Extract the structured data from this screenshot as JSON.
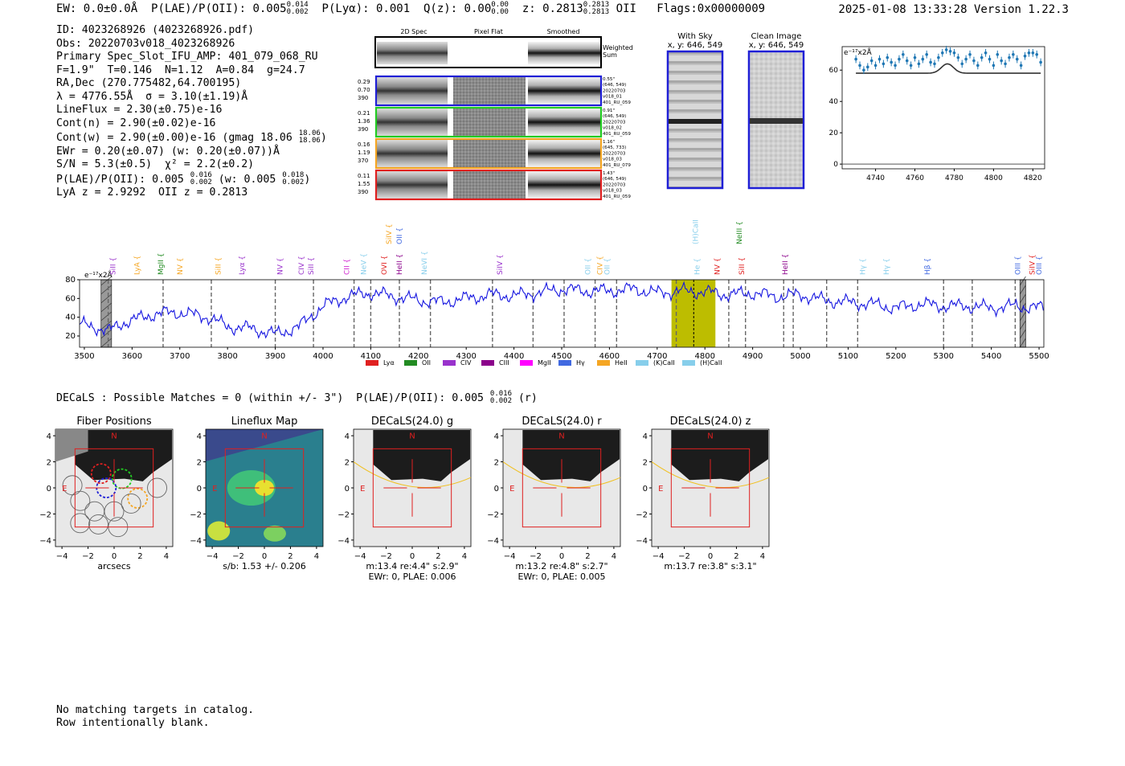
{
  "header": {
    "ew": "EW: 0.0±0.0Å",
    "plae": "P(LAE)/P(OII): 0.005",
    "plae_hi": "0.014",
    "plae_lo": "0.002",
    "plya": "P(Lyα): 0.001",
    "qz": "Q(z): 0.00",
    "qz_hi": "0.00",
    "qz_lo": "0.00",
    "z": "z: 0.2813",
    "z_hi": "0.2813",
    "z_lo": "0.2813",
    "z_line": "OII",
    "flags": "Flags:0x00000009",
    "datetime": "2025-01-08 13:33:28",
    "version": "Version 1.22.3"
  },
  "info": {
    "id": "ID: 4023268926 (4023268926.pdf)",
    "obs": "Obs: 20220703v018_4023268926",
    "primary": "Primary Spec_Slot_IFU_AMP: 401_079_068_RU",
    "params": "F=1.9\"  T=0.146  N=1.12  A=0.84  g=24.7",
    "radec": "RA,Dec (270.775482,64.700195)",
    "lambda": "λ = 4776.55Å  σ = 3.10(±1.19)Å",
    "lineflux": "LineFlux = 2.30(±0.75)e-16",
    "contn": "Cont(n) = 2.90(±0.02)e-16",
    "contw": "Cont(w) = 2.90(±0.00)e-16 (gmag 18.06",
    "gmag_hi": "18.06",
    "gmag_lo": "18.06",
    "ewr": "EWr = 0.20(±0.07) (w: 0.20(±0.07))Å",
    "sn": "S/N = 5.3(±0.5)  χ² = 2.2(±0.2)",
    "plae": "P(LAE)/P(OII): 0.005",
    "plae_hi": "0.016",
    "plae_lo": "0.002",
    "plae_w": "(w: 0.005",
    "plae_w_hi": "0.018",
    "plae_w_lo": "0.002",
    "lya_z": "LyA z = 2.9292  OII z = 0.2813"
  },
  "cutouts": {
    "col_labels": [
      "2D Spec",
      "Pixel Flat",
      "Smoothed"
    ],
    "weighted_label": [
      "Weighted",
      "Sum"
    ],
    "rows": [
      {
        "left": [
          "0.29",
          "0.70",
          "390"
        ],
        "right": [
          "0.55\"",
          "(646, 549)",
          "20220703",
          "v018_01",
          "401_RU_059"
        ],
        "color": "#1f1fd6"
      },
      {
        "left": [
          "0.21",
          "1.36",
          "390"
        ],
        "right": [
          "0.91\"",
          "(646, 549)",
          "20220703",
          "v018_02",
          "401_RU_059"
        ],
        "color": "#22cc22"
      },
      {
        "left": [
          "0.16",
          "1.19",
          "370"
        ],
        "right": [
          "1.16\"",
          "(645, 733)",
          "20220703",
          "v018_03",
          "401_RU_079"
        ],
        "color": "#f5a623"
      },
      {
        "left": [
          "0.11",
          "1.55",
          "390"
        ],
        "right": [
          "1.43\"",
          "(646, 549)",
          "20220703",
          "v018_03",
          "401_RU_059"
        ],
        "color": "#e02020"
      }
    ]
  },
  "sky": {
    "with_sky_title": "With Sky",
    "with_sky_xy": "x, y: 646, 549",
    "clean_title": "Clean Image",
    "clean_xy": "x, y: 646, 549"
  },
  "zoom_chart": {
    "type": "scatter",
    "unit_label": "e⁻¹⁷x2Å",
    "xlim": [
      4723,
      4826
    ],
    "ylim": [
      -3,
      75
    ],
    "xticks": [
      4740,
      4760,
      4780,
      4800,
      4820
    ],
    "yticks": [
      0,
      20,
      40,
      60
    ],
    "x": [
      4730,
      4732,
      4734,
      4736,
      4738,
      4740,
      4742,
      4744,
      4746,
      4748,
      4750,
      4752,
      4754,
      4756,
      4758,
      4760,
      4762,
      4764,
      4766,
      4768,
      4770,
      4772,
      4774,
      4776,
      4778,
      4780,
      4782,
      4784,
      4786,
      4788,
      4790,
      4792,
      4794,
      4796,
      4798,
      4800,
      4802,
      4804,
      4806,
      4808,
      4810,
      4812,
      4814,
      4816,
      4818,
      4820,
      4822,
      4824
    ],
    "y": [
      67,
      63,
      60,
      62,
      66,
      63,
      67,
      64,
      68,
      65,
      63,
      67,
      70,
      66,
      63,
      68,
      64,
      67,
      70,
      65,
      64,
      68,
      71,
      73,
      72,
      71,
      68,
      64,
      67,
      70,
      66,
      63,
      68,
      71,
      67,
      63,
      70,
      66,
      64,
      68,
      70,
      67,
      63,
      69,
      71,
      71,
      70,
      65
    ],
    "model_base": 58,
    "model_peak_x": 4776.55,
    "model_amp": 6,
    "model_sigma": 3.1
  },
  "spectrum": {
    "type": "line",
    "unit_label": "e⁻¹⁷x2Å",
    "xlim": [
      3490,
      5510
    ],
    "ylim": [
      8,
      80
    ],
    "xticks": [
      3500,
      3600,
      3700,
      3800,
      3900,
      4000,
      4100,
      4200,
      4300,
      4400,
      4500,
      4600,
      4700,
      4800,
      4900,
      5000,
      5100,
      5200,
      5300,
      5400,
      5500
    ],
    "yticks": [
      20,
      40,
      60,
      80
    ],
    "control_x": [
      3490,
      3520,
      3550,
      3580,
      3610,
      3650,
      3700,
      3760,
      3800,
      3850,
      3900,
      3950,
      4000,
      4050,
      4100,
      4150,
      4200,
      4250,
      4300,
      4350,
      4400,
      4450,
      4500,
      4550,
      4600,
      4650,
      4700,
      4750,
      4800,
      4850,
      4900,
      4950,
      5000,
      5050,
      5100,
      5150,
      5200,
      5250,
      5300,
      5350,
      5400,
      5450,
      5500,
      5510
    ],
    "control_y": [
      32,
      30,
      25,
      34,
      38,
      44,
      45,
      40,
      30,
      28,
      22,
      30,
      52,
      62,
      66,
      62,
      58,
      56,
      60,
      64,
      63,
      66,
      70,
      68,
      68,
      70,
      66,
      68,
      67,
      64,
      66,
      62,
      64,
      58,
      56,
      54,
      50,
      54,
      52,
      52,
      50,
      52,
      50,
      50
    ],
    "highlight_band": [
      4730,
      4822
    ],
    "highlight_line": 4776.55,
    "gray_bands": [
      [
        3535,
        3557
      ],
      [
        5460,
        5472
      ]
    ],
    "dashed_lines": [
      3550,
      3665,
      3766,
      3900,
      3980,
      4065,
      4100,
      4160,
      4225,
      4355,
      4440,
      4505,
      4570,
      4615,
      4740,
      4850,
      4885,
      4965,
      4985,
      5055,
      5120,
      5300,
      5360,
      5450
    ],
    "line_labels": [
      {
        "x": 3560,
        "label": "SiII",
        "color": "#9932cc",
        "row": 1
      },
      {
        "x": 3610,
        "label": "LyA",
        "color": "#f5a623",
        "row": 1
      },
      {
        "x": 3660,
        "label": "MgII",
        "color": "#228b22",
        "row": 1
      },
      {
        "x": 3700,
        "label": "NV",
        "color": "#f5a623",
        "row": 1
      },
      {
        "x": 3780,
        "label": "SiII",
        "color": "#f5a623",
        "row": 1
      },
      {
        "x": 3830,
        "label": "Lyα",
        "color": "#9932cc",
        "row": 1
      },
      {
        "x": 3910,
        "label": "NV",
        "color": "#9932cc",
        "row": 1
      },
      {
        "x": 3955,
        "label": "CIV",
        "color": "#9932cc",
        "row": 1
      },
      {
        "x": 3975,
        "label": "SiII",
        "color": "#9932cc",
        "row": 1
      },
      {
        "x": 4050,
        "label": "CII",
        "color": "#d020d0",
        "row": 1
      },
      {
        "x": 4085,
        "label": "NeV",
        "color": "#87ceeb",
        "row": 1
      },
      {
        "x": 4128,
        "label": "OVI",
        "color": "#e02020",
        "row": 1
      },
      {
        "x": 4138,
        "label": "SiIV",
        "color": "#f5a623",
        "row": 0
      },
      {
        "x": 4160,
        "label": "HeII",
        "color": "#8b008b",
        "row": 1
      },
      {
        "x": 4160,
        "label": "OII",
        "color": "#4169e1",
        "row": 0
      },
      {
        "x": 4212,
        "label": "NeVI",
        "color": "#87ceeb",
        "row": 1
      },
      {
        "x": 4370,
        "label": "SiIV",
        "color": "#9932cc",
        "row": 1
      },
      {
        "x": 4555,
        "label": "OII",
        "color": "#87ceeb",
        "row": 1
      },
      {
        "x": 4580,
        "label": "CIV",
        "color": "#f5a623",
        "row": 1
      },
      {
        "x": 4595,
        "label": "OII",
        "color": "#87ceeb",
        "row": 1
      },
      {
        "x": 4780,
        "label": "(H)CaII",
        "color": "#87ceeb",
        "row": 0
      },
      {
        "x": 4784,
        "label": "He",
        "color": "#87ceeb",
        "row": 1
      },
      {
        "x": 4826,
        "label": "NV",
        "color": "#e02020",
        "row": 1
      },
      {
        "x": 4877,
        "label": "SiII",
        "color": "#e02020",
        "row": 1
      },
      {
        "x": 4872,
        "label": "NeIII",
        "color": "#228b22",
        "row": 0
      },
      {
        "x": 4968,
        "label": "HeII",
        "color": "#8b008b",
        "row": 1
      },
      {
        "x": 5130,
        "label": "Hγ",
        "color": "#87ceeb",
        "row": 1
      },
      {
        "x": 5180,
        "label": "Hγ",
        "color": "#87ceeb",
        "row": 1
      },
      {
        "x": 5266,
        "label": "Hβ",
        "color": "#4169e1",
        "row": 1
      },
      {
        "x": 5455,
        "label": "OIII",
        "color": "#4169e1",
        "row": 1
      },
      {
        "x": 5486,
        "label": "SiIV",
        "color": "#e02020",
        "row": 1
      },
      {
        "x": 5500,
        "label": "OIII",
        "color": "#4169e1",
        "row": 1
      }
    ],
    "legend": [
      {
        "label": "Lyα",
        "color": "#e02020"
      },
      {
        "label": "OII",
        "color": "#228b22"
      },
      {
        "label": "CIV",
        "color": "#9932cc"
      },
      {
        "label": "CIII",
        "color": "#8b008b"
      },
      {
        "label": "MgII",
        "color": "#ff00ff"
      },
      {
        "label": "Hγ",
        "color": "#4169e1"
      },
      {
        "label": "HeII",
        "color": "#f5a623"
      },
      {
        "label": "(K)CaII",
        "color": "#87ceeb"
      },
      {
        "label": "(H)CaII",
        "color": "#87ceeb"
      }
    ]
  },
  "decals_line": {
    "text": "DECaLS : Possible Matches = 0 (within +/- 3\")  P(LAE)/P(OII): 0.005",
    "hi": "0.016",
    "lo": "0.002",
    "band": "(r)"
  },
  "panels": [
    {
      "title": "Fiber Positions",
      "footer1": "arcsecs",
      "footer2": ""
    },
    {
      "title": "Lineflux Map",
      "footer1": "s/b: 1.53 +/- 0.206",
      "footer2": ""
    },
    {
      "title": "DECaLS(24.0) g",
      "footer1": "m:13.4  re:4.4\"  s:2.9\"",
      "footer2": "EWr: 0, PLAE: 0.006"
    },
    {
      "title": "DECaLS(24.0) r",
      "footer1": "m:13.2  re:4.8\"  s:2.7\"",
      "footer2": "EWr: 0, PLAE: 0.005"
    },
    {
      "title": "DECaLS(24.0) z",
      "footer1": "m:13.7  re:3.8\"  s:3.1\"",
      "footer2": ""
    }
  ],
  "panel_axes": {
    "ticks": [
      -4,
      -2,
      0,
      2,
      4
    ],
    "north": "N",
    "east": "E"
  },
  "footer": {
    "line1": "No matching targets in catalog.",
    "line2": "Row intentionally blank."
  }
}
